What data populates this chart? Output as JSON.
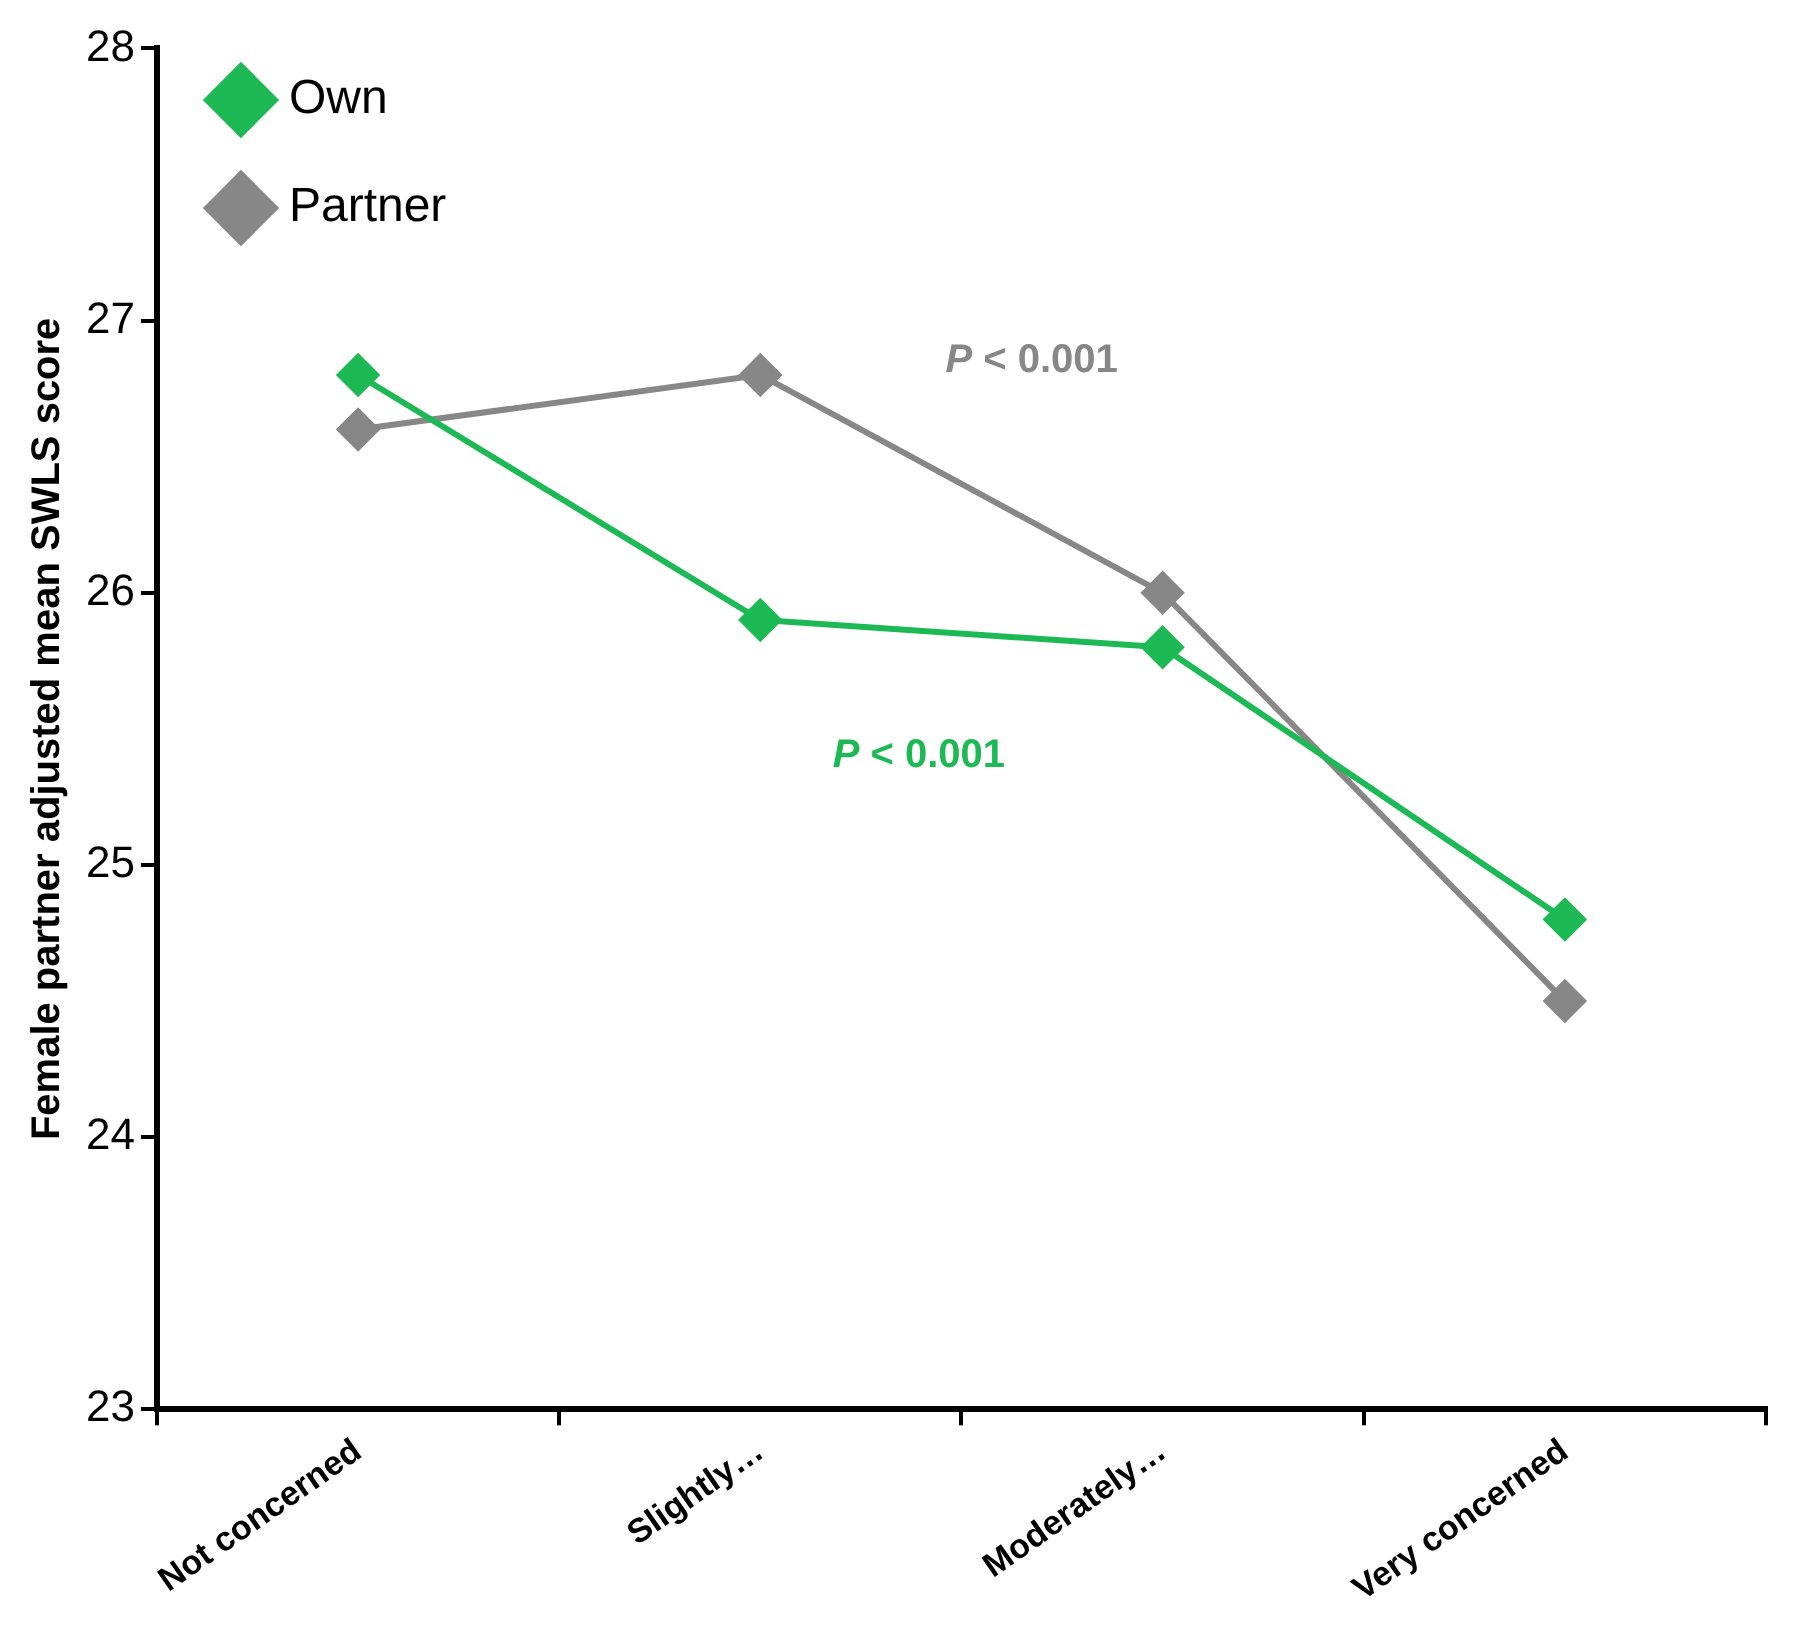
{
  "chart_data": {
    "type": "line",
    "ylabel": "Female partner adjusted mean SWLS score",
    "categories": [
      "Not concerned",
      "Slightly…",
      "Moderately…",
      "Very concerned"
    ],
    "series": [
      {
        "name": "Own",
        "color": "#1db954",
        "values": [
          26.8,
          25.9,
          25.8,
          24.8
        ]
      },
      {
        "name": "Partner",
        "color": "#878787",
        "values": [
          26.6,
          26.8,
          26.0,
          24.5
        ]
      }
    ],
    "ylim": [
      23,
      28
    ],
    "yticks": [
      23,
      24,
      25,
      26,
      27,
      28
    ],
    "grid": false,
    "legend": "top left",
    "marker": "diamond",
    "line_style": "solid",
    "annotations": [
      "P < 0.001",
      "P < 0.001"
    ]
  }
}
